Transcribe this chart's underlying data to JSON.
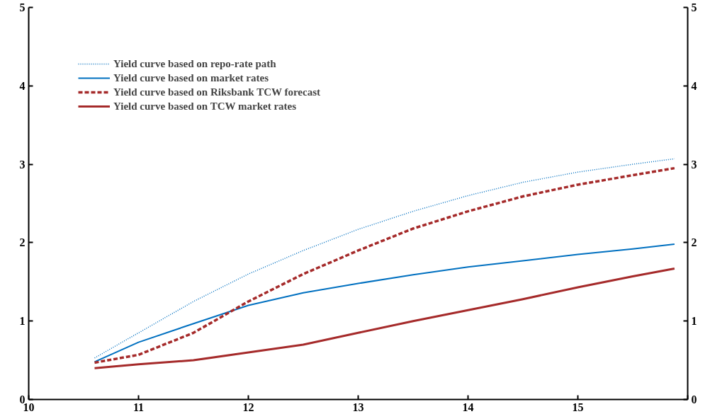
{
  "chart_data": {
    "type": "line",
    "xlim": [
      10,
      16
    ],
    "xticks": [
      10,
      11,
      12,
      13,
      14,
      15,
      {
        "value": 16,
        "label": null
      }
    ],
    "ylim": [
      0,
      5
    ],
    "yticks": [
      0,
      1,
      2,
      3,
      4,
      5
    ],
    "y2lim": [
      0,
      5
    ],
    "y2ticks": [
      0,
      1,
      2,
      3,
      4,
      5
    ],
    "grid": false,
    "legend": "top left",
    "marker": "none",
    "series": [
      {
        "name": "Yield curve based on repo-rate path",
        "color": "#0070c0",
        "line_style": "dotted",
        "x": [
          10.6,
          11,
          11.5,
          12,
          12.5,
          13,
          13.5,
          14,
          14.5,
          15,
          15.5,
          15.88
        ],
        "values": [
          0.53,
          0.85,
          1.25,
          1.6,
          1.9,
          2.17,
          2.4,
          2.6,
          2.77,
          2.9,
          3.0,
          3.07
        ]
      },
      {
        "name": "Yield curve based on market rates",
        "color": "#0070c0",
        "line_style": "solid",
        "x": [
          10.6,
          11,
          11.4,
          12,
          12.5,
          13,
          13.5,
          14,
          14.5,
          15,
          15.5,
          15.88
        ],
        "values": [
          0.48,
          0.73,
          0.92,
          1.2,
          1.36,
          1.48,
          1.59,
          1.69,
          1.77,
          1.85,
          1.92,
          1.98
        ]
      },
      {
        "name": "Yield curve based on Riksbank TCW forecast",
        "color": "#a52a2a",
        "line_style": "dashed",
        "x": [
          10.6,
          11,
          11.5,
          12,
          12.5,
          13,
          13.5,
          14,
          14.5,
          15,
          15.5,
          15.88
        ],
        "values": [
          0.47,
          0.57,
          0.85,
          1.25,
          1.6,
          1.9,
          2.18,
          2.4,
          2.59,
          2.74,
          2.86,
          2.95
        ]
      },
      {
        "name": "Yield curve based on TCW market rates",
        "color": "#a52a2a",
        "line_style": "solid",
        "x": [
          10.6,
          11,
          11.5,
          12,
          12.5,
          13,
          13.5,
          14,
          14.5,
          15,
          15.5,
          15.88
        ],
        "values": [
          0.4,
          0.45,
          0.5,
          0.6,
          0.7,
          0.85,
          1.0,
          1.14,
          1.28,
          1.43,
          1.57,
          1.67
        ]
      }
    ]
  }
}
